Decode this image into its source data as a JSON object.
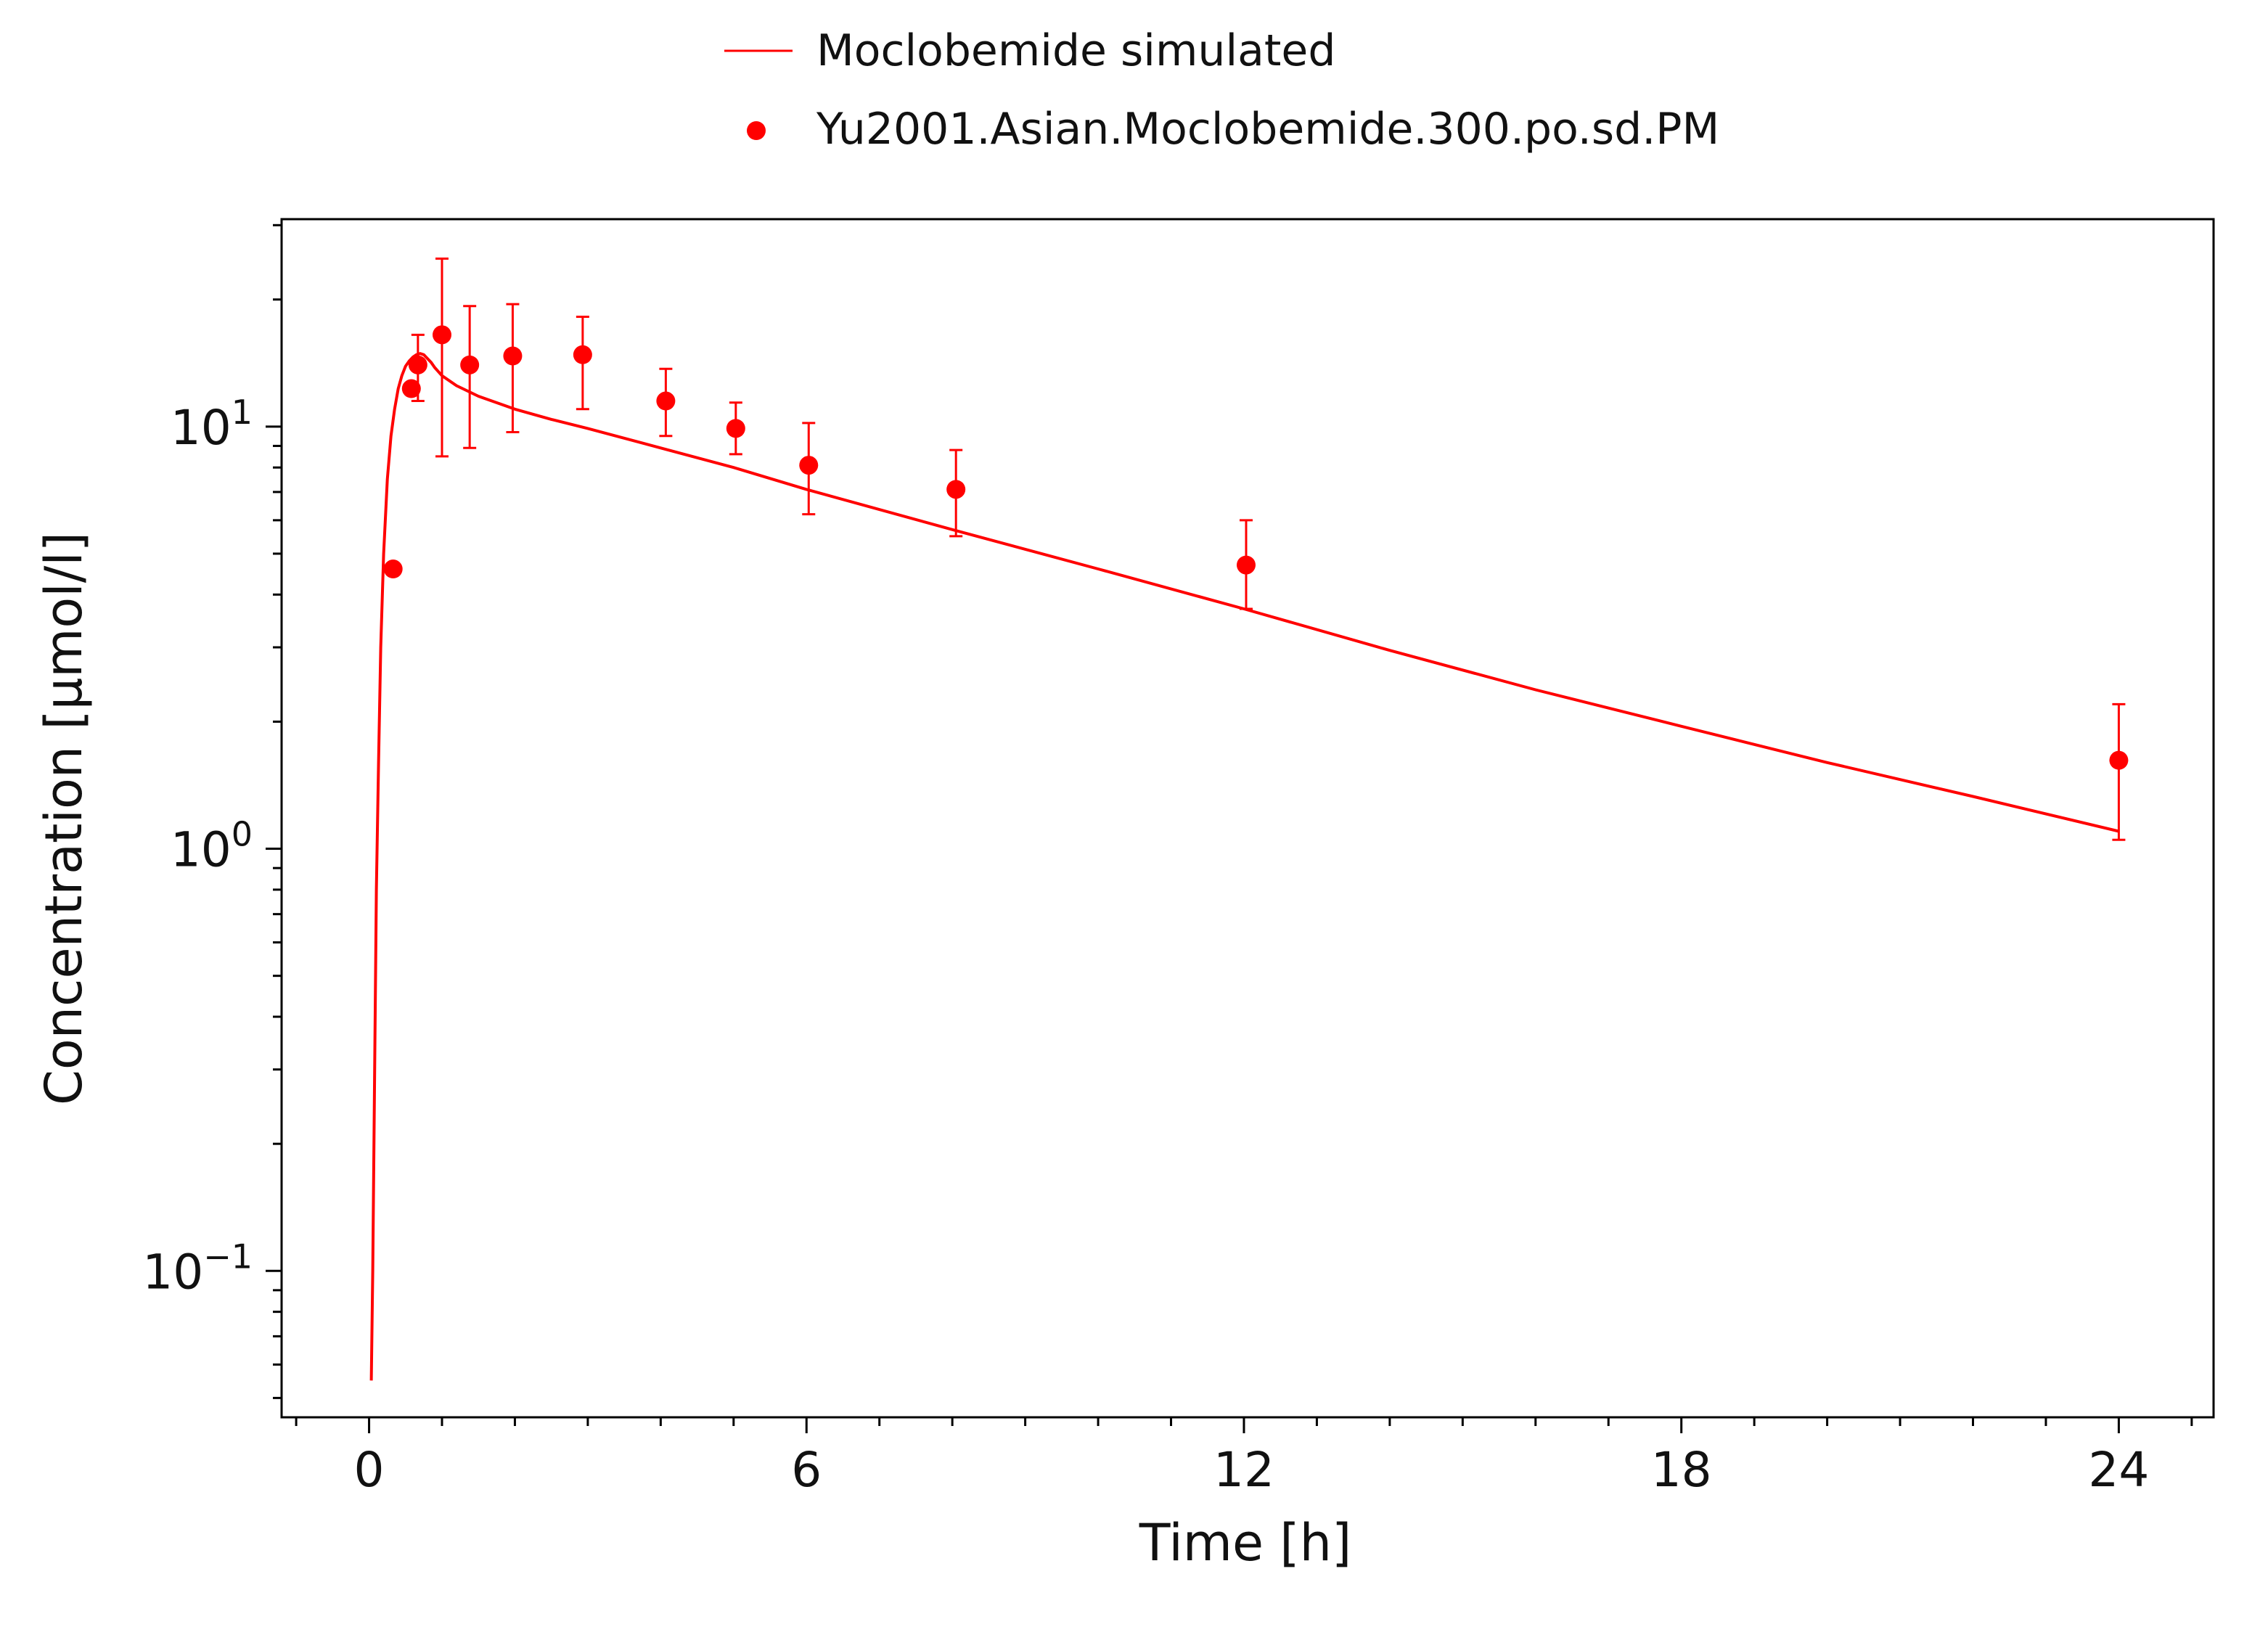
{
  "chart_data": {
    "type": "line",
    "xlabel": "Time [h]",
    "ylabel": "Concentration [µmol/l]",
    "xlim": [
      -1.2,
      25.3
    ],
    "ylim": [
      0.045,
      31
    ],
    "y_scale": "log",
    "x_ticks": [
      0,
      6,
      12,
      18,
      24
    ],
    "y_ticks": [
      {
        "value": 0.1,
        "base": "10",
        "exp": "−1"
      },
      {
        "value": 1,
        "base": "10",
        "exp": "0"
      },
      {
        "value": 10,
        "base": "10",
        "exp": "1"
      }
    ],
    "legend_position": "top-center",
    "grid": false,
    "color": "#ff0000",
    "series": [
      {
        "name": "Moclobemide simulated",
        "kind": "line",
        "x": [
          0.03,
          0.05,
          0.08,
          0.1,
          0.13,
          0.16,
          0.2,
          0.25,
          0.3,
          0.35,
          0.4,
          0.45,
          0.5,
          0.55,
          0.6,
          0.65,
          0.7,
          0.75,
          0.8,
          0.85,
          0.9,
          1.0,
          1.2,
          1.5,
          2.0,
          2.5,
          3.0,
          4.0,
          5.0,
          6.0,
          8.0,
          10.0,
          12.0,
          14.0,
          16.0,
          18.0,
          20.0,
          22.0,
          24.0
        ],
        "y": [
          0.055,
          0.1,
          0.35,
          0.8,
          1.6,
          3.0,
          5.0,
          7.5,
          9.5,
          11.0,
          12.3,
          13.2,
          13.9,
          14.3,
          14.6,
          14.8,
          14.9,
          14.8,
          14.5,
          14.2,
          13.8,
          13.2,
          12.5,
          11.8,
          11.0,
          10.4,
          9.9,
          8.9,
          8.0,
          7.1,
          5.7,
          4.6,
          3.7,
          2.95,
          2.38,
          1.95,
          1.6,
          1.33,
          1.1
        ]
      },
      {
        "name": "Yu2001.Asian.Moclobemide.300.po.sd.PM",
        "kind": "scatter",
        "points": [
          {
            "x": 0.33,
            "y": 4.6,
            "err_low": null,
            "err_high": null
          },
          {
            "x": 0.58,
            "y": 12.3,
            "err_low": null,
            "err_high": null
          },
          {
            "x": 0.67,
            "y": 14.0,
            "err_low": 11.5,
            "err_high": 16.5
          },
          {
            "x": 1.0,
            "y": 16.5,
            "err_low": 8.5,
            "err_high": 25.0
          },
          {
            "x": 1.38,
            "y": 14.0,
            "err_low": 8.9,
            "err_high": 19.3
          },
          {
            "x": 1.97,
            "y": 14.7,
            "err_low": 9.7,
            "err_high": 19.5
          },
          {
            "x": 2.93,
            "y": 14.8,
            "err_low": 11.0,
            "err_high": 18.2
          },
          {
            "x": 4.07,
            "y": 11.5,
            "err_low": 9.5,
            "err_high": 13.7
          },
          {
            "x": 5.03,
            "y": 9.9,
            "err_low": 8.6,
            "err_high": 11.4
          },
          {
            "x": 6.03,
            "y": 8.1,
            "err_low": 6.2,
            "err_high": 10.2
          },
          {
            "x": 8.05,
            "y": 7.1,
            "err_low": 5.5,
            "err_high": 8.8
          },
          {
            "x": 12.03,
            "y": 4.7,
            "err_low": 3.7,
            "err_high": 6.0
          },
          {
            "x": 24.0,
            "y": 1.62,
            "err_low": 1.05,
            "err_high": 2.2
          }
        ]
      }
    ]
  }
}
